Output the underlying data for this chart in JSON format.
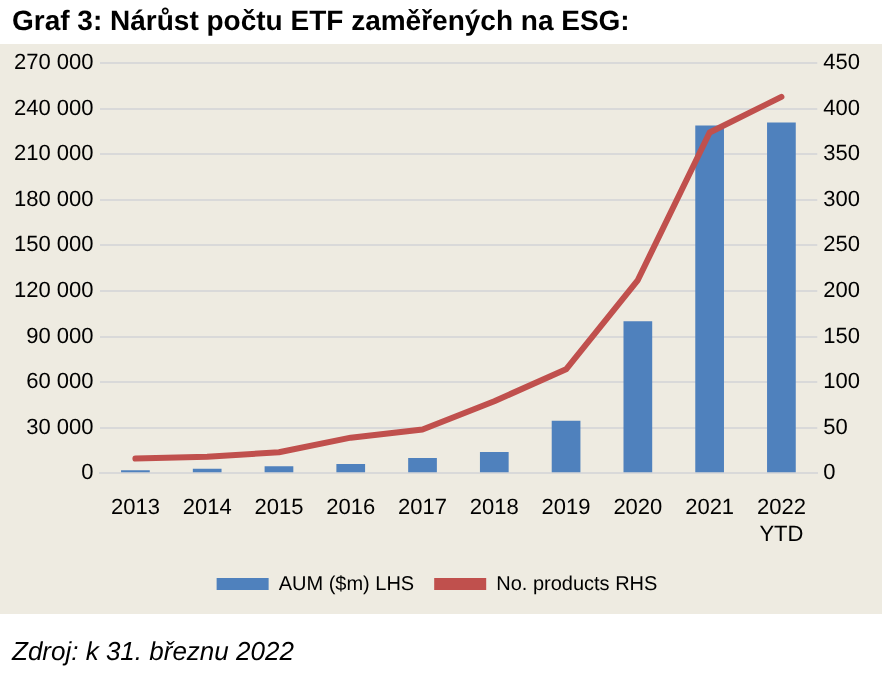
{
  "chart_data": {
    "type": "bar",
    "title": "Graf 3: Nárůst počtu ETF zaměřených na ESG:",
    "categories": [
      "2013",
      "2014",
      "2015",
      "2016",
      "2017",
      "2018",
      "2019",
      "2020",
      "2021",
      "2022 YTD"
    ],
    "series": [
      {
        "name": "AUM ($m) LHS",
        "color": "#4f81bd",
        "values": [
          2000,
          3000,
          4500,
          6000,
          10000,
          14000,
          34500,
          100000,
          229000,
          231000
        ]
      },
      {
        "name": "No. products RHS",
        "type": "line",
        "axis": "y2",
        "color": "#c0504d",
        "values": [
          16,
          18,
          23,
          39,
          48,
          79,
          114,
          212,
          374,
          413
        ]
      }
    ],
    "ylim": [
      0,
      270000
    ],
    "yticks": [
      0,
      {
        "value": 30000,
        "label": "30 000"
      },
      {
        "value": 60000,
        "label": "60 000"
      },
      {
        "value": 90000,
        "label": "90 000"
      },
      {
        "value": 120000,
        "label": "120 000"
      },
      {
        "value": 150000,
        "label": "150 000"
      },
      {
        "value": 180000,
        "label": "180 000"
      },
      {
        "value": 210000,
        "label": "210 000"
      },
      {
        "value": 240000,
        "label": "240 000"
      },
      {
        "value": 270000,
        "label": "270 000"
      }
    ],
    "y2lim": [
      0,
      450
    ],
    "y2ticks": [
      0,
      50,
      100,
      150,
      200,
      250,
      300,
      350,
      400,
      450
    ],
    "grid": "y",
    "legend": "bottom",
    "marker": "none",
    "annotations": [
      "Zdroj: k 31. březnu 2022"
    ]
  }
}
